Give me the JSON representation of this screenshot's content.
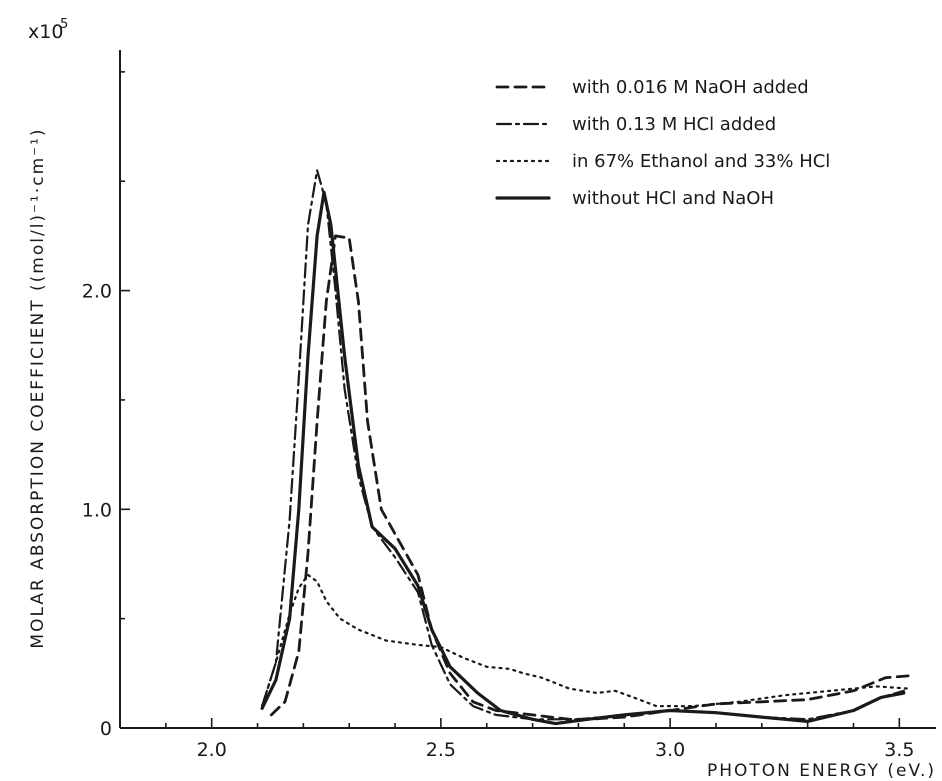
{
  "chart_data": {
    "type": "line",
    "title": "",
    "xlabel": "PHOTON ENERGY  (eV.)",
    "ylabel": "MOLAR ABSORPTION COEFFICIENT  ((mol/l)⁻¹·cm⁻¹)",
    "y_multiplier_label": "x10",
    "y_multiplier_exp": "5",
    "xlim": [
      1.8,
      3.58
    ],
    "ylim": [
      0,
      3.1
    ],
    "x_ticks": [
      {
        "value": 2.0,
        "label": "2.0"
      },
      {
        "value": 2.5,
        "label": "2.5"
      },
      {
        "value": 3.0,
        "label": "3.0"
      },
      {
        "value": 3.5,
        "label": "3.5"
      }
    ],
    "x_minor_ticks": [
      1.9,
      2.1,
      2.2,
      2.3,
      2.4,
      2.6,
      2.7,
      2.8,
      2.9,
      3.1,
      3.2,
      3.3,
      3.4
    ],
    "y_ticks": [
      {
        "value": 0,
        "label": "0"
      },
      {
        "value": 1.0,
        "label": "1.0"
      },
      {
        "value": 2.0,
        "label": "2.0"
      }
    ],
    "y_minor_ticks": [
      0.5,
      1.5,
      2.5,
      3.0
    ],
    "grid": false,
    "legend_position": "top-right",
    "series": [
      {
        "name": "with 0.016 M  NaOH added",
        "style": "dashed",
        "points": [
          [
            2.13,
            0.06
          ],
          [
            2.16,
            0.12
          ],
          [
            2.19,
            0.35
          ],
          [
            2.21,
            0.8
          ],
          [
            2.23,
            1.4
          ],
          [
            2.25,
            1.95
          ],
          [
            2.27,
            2.25
          ],
          [
            2.3,
            2.24
          ],
          [
            2.32,
            1.95
          ],
          [
            2.34,
            1.4
          ],
          [
            2.37,
            1.0
          ],
          [
            2.41,
            0.85
          ],
          [
            2.45,
            0.7
          ],
          [
            2.48,
            0.45
          ],
          [
            2.52,
            0.25
          ],
          [
            2.57,
            0.12
          ],
          [
            2.62,
            0.08
          ],
          [
            2.7,
            0.06
          ],
          [
            2.78,
            0.04
          ],
          [
            2.82,
            0.04
          ],
          [
            2.9,
            0.05
          ],
          [
            3.0,
            0.08
          ],
          [
            3.1,
            0.11
          ],
          [
            3.2,
            0.12
          ],
          [
            3.3,
            0.13
          ],
          [
            3.4,
            0.17
          ],
          [
            3.47,
            0.23
          ],
          [
            3.53,
            0.24
          ]
        ]
      },
      {
        "name": "with 0.13 M  HCl added",
        "style": "dash-dot",
        "points": [
          [
            2.11,
            0.1
          ],
          [
            2.14,
            0.3
          ],
          [
            2.17,
            0.95
          ],
          [
            2.19,
            1.6
          ],
          [
            2.21,
            2.3
          ],
          [
            2.23,
            2.55
          ],
          [
            2.25,
            2.4
          ],
          [
            2.27,
            2.0
          ],
          [
            2.29,
            1.55
          ],
          [
            2.32,
            1.15
          ],
          [
            2.35,
            0.92
          ],
          [
            2.4,
            0.78
          ],
          [
            2.45,
            0.62
          ],
          [
            2.48,
            0.38
          ],
          [
            2.52,
            0.2
          ],
          [
            2.57,
            0.1
          ],
          [
            2.62,
            0.06
          ],
          [
            2.7,
            0.04
          ],
          [
            2.8,
            0.04
          ],
          [
            2.9,
            0.06
          ],
          [
            3.0,
            0.08
          ],
          [
            3.1,
            0.07
          ],
          [
            3.2,
            0.05
          ],
          [
            3.3,
            0.04
          ],
          [
            3.4,
            0.08
          ],
          [
            3.46,
            0.14
          ],
          [
            3.51,
            0.17
          ]
        ]
      },
      {
        "name": "in 67% Ethanol and 33% HCl",
        "style": "dotted",
        "points": [
          [
            2.11,
            0.1
          ],
          [
            2.14,
            0.3
          ],
          [
            2.17,
            0.52
          ],
          [
            2.19,
            0.64
          ],
          [
            2.21,
            0.7
          ],
          [
            2.23,
            0.67
          ],
          [
            2.25,
            0.58
          ],
          [
            2.28,
            0.5
          ],
          [
            2.32,
            0.45
          ],
          [
            2.38,
            0.4
          ],
          [
            2.45,
            0.38
          ],
          [
            2.5,
            0.37
          ],
          [
            2.55,
            0.32
          ],
          [
            2.6,
            0.28
          ],
          [
            2.65,
            0.27
          ],
          [
            2.68,
            0.25
          ],
          [
            2.72,
            0.23
          ],
          [
            2.78,
            0.18
          ],
          [
            2.84,
            0.16
          ],
          [
            2.88,
            0.17
          ],
          [
            2.92,
            0.14
          ],
          [
            2.97,
            0.1
          ],
          [
            3.05,
            0.1
          ],
          [
            3.15,
            0.12
          ],
          [
            3.25,
            0.15
          ],
          [
            3.35,
            0.17
          ],
          [
            3.45,
            0.19
          ],
          [
            3.52,
            0.18
          ]
        ]
      },
      {
        "name": "without  HCl and NaOH",
        "style": "solid",
        "points": [
          [
            2.11,
            0.09
          ],
          [
            2.14,
            0.22
          ],
          [
            2.17,
            0.5
          ],
          [
            2.19,
            1.0
          ],
          [
            2.21,
            1.7
          ],
          [
            2.23,
            2.25
          ],
          [
            2.245,
            2.45
          ],
          [
            2.26,
            2.3
          ],
          [
            2.29,
            1.7
          ],
          [
            2.32,
            1.2
          ],
          [
            2.35,
            0.92
          ],
          [
            2.4,
            0.82
          ],
          [
            2.45,
            0.65
          ],
          [
            2.48,
            0.45
          ],
          [
            2.52,
            0.28
          ],
          [
            2.58,
            0.16
          ],
          [
            2.63,
            0.08
          ],
          [
            2.7,
            0.04
          ],
          [
            2.75,
            0.02
          ],
          [
            2.82,
            0.04
          ],
          [
            2.9,
            0.06
          ],
          [
            3.0,
            0.08
          ],
          [
            3.1,
            0.07
          ],
          [
            3.2,
            0.05
          ],
          [
            3.3,
            0.03
          ],
          [
            3.4,
            0.08
          ],
          [
            3.46,
            0.14
          ],
          [
            3.51,
            0.16
          ]
        ]
      }
    ]
  }
}
